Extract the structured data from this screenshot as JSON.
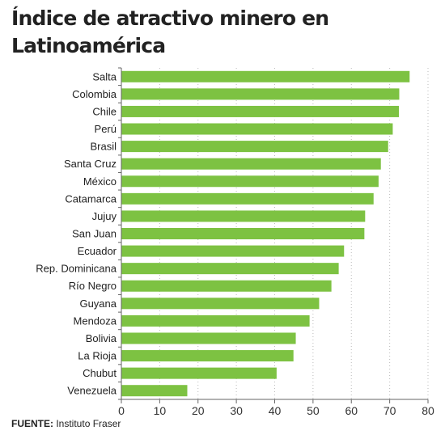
{
  "header": {
    "title": "Índice de atractivo minero en Latinoamérica"
  },
  "source": {
    "label": "FUENTE:",
    "text": "Instituto Fraser"
  },
  "colors": {
    "bar": "#7dc242",
    "axis": "#666666",
    "grid": "#bbbbbb"
  },
  "chart_data": {
    "type": "bar",
    "orientation": "horizontal",
    "title": "Índice de atractivo minero en Latinoamérica",
    "xlabel": "",
    "ylabel": "",
    "xlim": [
      0,
      80
    ],
    "xticks": [
      0,
      10,
      20,
      30,
      40,
      50,
      60,
      70,
      80
    ],
    "grid": true,
    "categories": [
      "Salta",
      "Colombia",
      "Chile",
      "Perú",
      "Brasil",
      "Santa Cruz",
      "México",
      "Catamarca",
      "Jujuy",
      "San Juan",
      "Ecuador",
      "Rep. Dominicana",
      "Río Negro",
      "Guyana",
      "Mendoza",
      "Bolivia",
      "La Rioja",
      "Chubut",
      "Venezuela"
    ],
    "values": [
      75.2,
      72.5,
      72.4,
      70.8,
      69.6,
      67.7,
      67.1,
      65.8,
      63.6,
      63.4,
      58.1,
      56.7,
      54.8,
      51.6,
      49.1,
      45.5,
      44.9,
      40.5,
      17.2
    ]
  }
}
